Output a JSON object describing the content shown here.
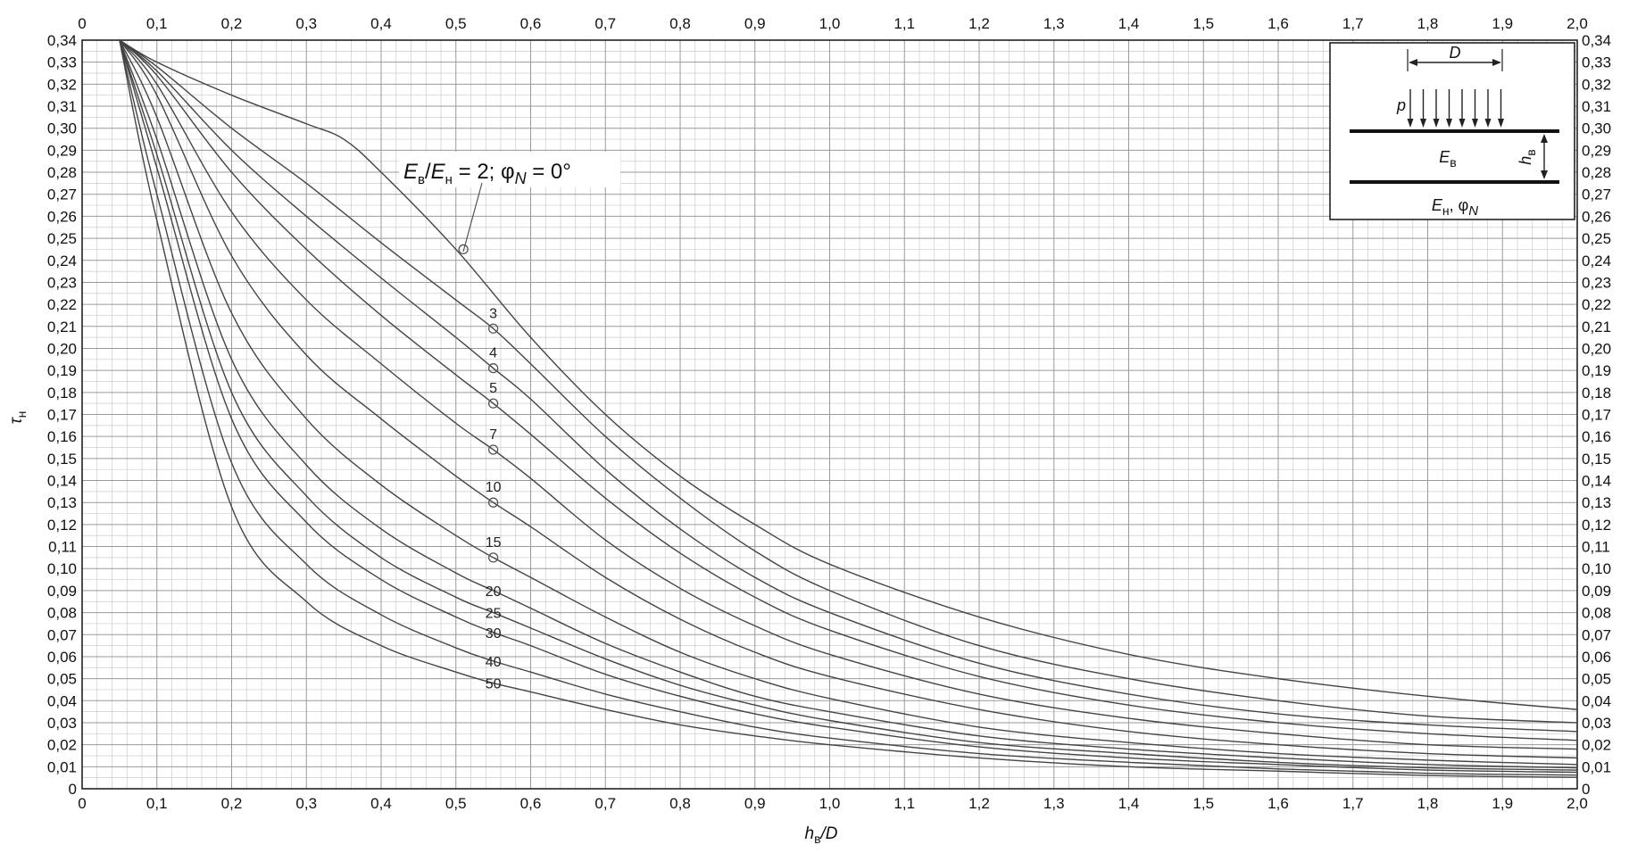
{
  "chart_data": {
    "type": "line",
    "xlabel_main": "h",
    "xlabel_sub": "в",
    "xlabel_tail": "/D",
    "ylabel_main": "τ",
    "ylabel_sub": "н",
    "xlim": [
      0,
      2.0
    ],
    "ylim": [
      0,
      0.34
    ],
    "x_ticks": [
      "0",
      "0,1",
      "0,2",
      "0,3",
      "0,4",
      "0,5",
      "0,6",
      "0,7",
      "0,8",
      "0,9",
      "1,0",
      "1,1",
      "1,2",
      "1,3",
      "1,4",
      "1,5",
      "1,6",
      "1,7",
      "1,8",
      "1,9",
      "2,0"
    ],
    "y_ticks": [
      "0",
      "0,01",
      "0,02",
      "0,03",
      "0,04",
      "0,05",
      "0,06",
      "0,07",
      "0,08",
      "0,09",
      "0,10",
      "0,11",
      "0,12",
      "0,13",
      "0,14",
      "0,15",
      "0,16",
      "0,17",
      "0,18",
      "0,19",
      "0,20",
      "0,21",
      "0,22",
      "0,23",
      "0,24",
      "0,25",
      "0,26",
      "0,27",
      "0,28",
      "0,29",
      "0,30",
      "0,31",
      "0,32",
      "0,33",
      "0,34"
    ],
    "grid": true,
    "callout": {
      "e1": "E",
      "s1": "в",
      "slash": "/",
      "e2": "E",
      "s2": "н",
      "rest1": " = 2; φ",
      "sub3": "N",
      "rest2": " = 0°"
    },
    "series": [
      {
        "name": "2",
        "label_x": 0.51,
        "label_y": 0.245,
        "x": [
          0.05,
          0.1,
          0.2,
          0.3,
          0.35,
          0.4,
          0.5,
          0.6,
          0.7,
          0.8,
          0.9,
          1.0,
          1.2,
          1.4,
          1.6,
          1.8,
          2.0
        ],
        "y": [
          0.34,
          0.33,
          0.315,
          0.302,
          0.295,
          0.28,
          0.245,
          0.205,
          0.17,
          0.142,
          0.12,
          0.102,
          0.078,
          0.061,
          0.05,
          0.042,
          0.036
        ]
      },
      {
        "name": "3",
        "label_x": 0.55,
        "label_y": 0.209,
        "x": [
          0.05,
          0.1,
          0.2,
          0.3,
          0.4,
          0.5,
          0.55,
          0.6,
          0.7,
          0.8,
          0.9,
          1.0,
          1.2,
          1.4,
          1.6,
          1.8,
          2.0
        ],
        "y": [
          0.34,
          0.328,
          0.3,
          0.275,
          0.248,
          0.222,
          0.209,
          0.193,
          0.16,
          0.132,
          0.108,
          0.09,
          0.065,
          0.05,
          0.04,
          0.033,
          0.03
        ]
      },
      {
        "name": "4",
        "label_x": 0.55,
        "label_y": 0.191,
        "x": [
          0.05,
          0.1,
          0.2,
          0.3,
          0.4,
          0.5,
          0.55,
          0.6,
          0.7,
          0.8,
          0.9,
          1.0,
          1.2,
          1.4,
          1.6,
          1.8,
          2.0
        ],
        "y": [
          0.34,
          0.326,
          0.29,
          0.26,
          0.232,
          0.205,
          0.191,
          0.177,
          0.145,
          0.118,
          0.096,
          0.08,
          0.057,
          0.043,
          0.034,
          0.029,
          0.026
        ]
      },
      {
        "name": "5",
        "label_x": 0.55,
        "label_y": 0.175,
        "x": [
          0.05,
          0.1,
          0.2,
          0.3,
          0.4,
          0.5,
          0.55,
          0.6,
          0.7,
          0.8,
          0.9,
          1.0,
          1.2,
          1.4,
          1.6,
          1.8,
          2.0
        ],
        "y": [
          0.34,
          0.324,
          0.28,
          0.245,
          0.215,
          0.188,
          0.175,
          0.161,
          0.132,
          0.107,
          0.087,
          0.072,
          0.051,
          0.038,
          0.03,
          0.025,
          0.022
        ]
      },
      {
        "name": "7",
        "label_x": 0.55,
        "label_y": 0.154,
        "x": [
          0.05,
          0.1,
          0.2,
          0.3,
          0.4,
          0.5,
          0.55,
          0.6,
          0.7,
          0.8,
          0.9,
          1.0,
          1.2,
          1.4,
          1.6,
          1.8,
          2.0
        ],
        "y": [
          0.34,
          0.32,
          0.262,
          0.222,
          0.193,
          0.166,
          0.154,
          0.141,
          0.113,
          0.091,
          0.074,
          0.061,
          0.043,
          0.032,
          0.025,
          0.02,
          0.018
        ]
      },
      {
        "name": "10",
        "label_x": 0.55,
        "label_y": 0.13,
        "x": [
          0.05,
          0.1,
          0.2,
          0.3,
          0.4,
          0.5,
          0.55,
          0.6,
          0.7,
          0.8,
          0.9,
          1.0,
          1.2,
          1.4,
          1.6,
          1.8,
          2.0
        ],
        "y": [
          0.34,
          0.315,
          0.242,
          0.197,
          0.168,
          0.142,
          0.13,
          0.119,
          0.096,
          0.077,
          0.062,
          0.051,
          0.036,
          0.026,
          0.02,
          0.016,
          0.014
        ]
      },
      {
        "name": "15",
        "label_x": 0.55,
        "label_y": 0.105,
        "x": [
          0.05,
          0.1,
          0.2,
          0.3,
          0.4,
          0.5,
          0.55,
          0.6,
          0.7,
          0.8,
          0.9,
          1.0,
          1.2,
          1.4,
          1.6,
          1.8,
          2.0
        ],
        "y": [
          0.34,
          0.305,
          0.216,
          0.168,
          0.138,
          0.115,
          0.105,
          0.096,
          0.078,
          0.062,
          0.05,
          0.041,
          0.028,
          0.021,
          0.016,
          0.013,
          0.011
        ]
      },
      {
        "name": "20",
        "label_x": 0.55,
        "label_y": 0.09,
        "x": [
          0.05,
          0.1,
          0.2,
          0.3,
          0.4,
          0.5,
          0.55,
          0.6,
          0.7,
          0.8,
          0.9,
          1.0,
          1.2,
          1.4,
          1.6,
          1.8,
          2.0
        ],
        "y": [
          0.34,
          0.295,
          0.195,
          0.147,
          0.118,
          0.098,
          0.09,
          0.082,
          0.066,
          0.053,
          0.042,
          0.035,
          0.024,
          0.018,
          0.014,
          0.011,
          0.0095
        ]
      },
      {
        "name": "25",
        "label_x": 0.55,
        "label_y": 0.08,
        "x": [
          0.05,
          0.1,
          0.2,
          0.3,
          0.4,
          0.5,
          0.55,
          0.6,
          0.7,
          0.8,
          0.9,
          1.0,
          1.2,
          1.4,
          1.6,
          1.8,
          2.0
        ],
        "y": [
          0.34,
          0.288,
          0.18,
          0.133,
          0.105,
          0.087,
          0.08,
          0.073,
          0.059,
          0.047,
          0.038,
          0.031,
          0.021,
          0.016,
          0.012,
          0.0095,
          0.0085
        ]
      },
      {
        "name": "30",
        "label_x": 0.55,
        "label_y": 0.071,
        "x": [
          0.05,
          0.1,
          0.2,
          0.3,
          0.4,
          0.5,
          0.55,
          0.6,
          0.7,
          0.8,
          0.9,
          1.0,
          1.2,
          1.4,
          1.6,
          1.8,
          2.0
        ],
        "y": [
          0.34,
          0.282,
          0.168,
          0.121,
          0.095,
          0.078,
          0.071,
          0.065,
          0.052,
          0.042,
          0.034,
          0.028,
          0.019,
          0.014,
          0.011,
          0.0085,
          0.0075
        ]
      },
      {
        "name": "40",
        "label_x": 0.55,
        "label_y": 0.058,
        "x": [
          0.05,
          0.1,
          0.2,
          0.3,
          0.4,
          0.5,
          0.55,
          0.6,
          0.7,
          0.8,
          0.9,
          1.0,
          1.2,
          1.4,
          1.6,
          1.8,
          2.0
        ],
        "y": [
          0.34,
          0.27,
          0.148,
          0.102,
          0.079,
          0.064,
          0.058,
          0.053,
          0.043,
          0.035,
          0.028,
          0.023,
          0.016,
          0.012,
          0.009,
          0.007,
          0.0062
        ]
      },
      {
        "name": "50",
        "label_x": 0.55,
        "label_y": 0.048,
        "x": [
          0.05,
          0.1,
          0.2,
          0.3,
          0.4,
          0.5,
          0.55,
          0.6,
          0.7,
          0.8,
          0.9,
          1.0,
          1.2,
          1.4,
          1.6,
          1.8,
          2.0
        ],
        "y": [
          0.34,
          0.258,
          0.128,
          0.085,
          0.065,
          0.053,
          0.048,
          0.044,
          0.036,
          0.029,
          0.024,
          0.02,
          0.014,
          0.01,
          0.008,
          0.006,
          0.0052
        ]
      }
    ]
  },
  "inset": {
    "d_label": "D",
    "p_label": "p",
    "eb_main": "E",
    "eb_sub": "в",
    "hb_main": "h",
    "hb_sub": "в",
    "en_main": "E",
    "en_sub": "н",
    "en_sep": ", φ",
    "en_sub2": "N"
  },
  "colors": {
    "grid_major": "#9a9a9a",
    "grid_minor": "#cccccc",
    "curve": "#444444"
  }
}
